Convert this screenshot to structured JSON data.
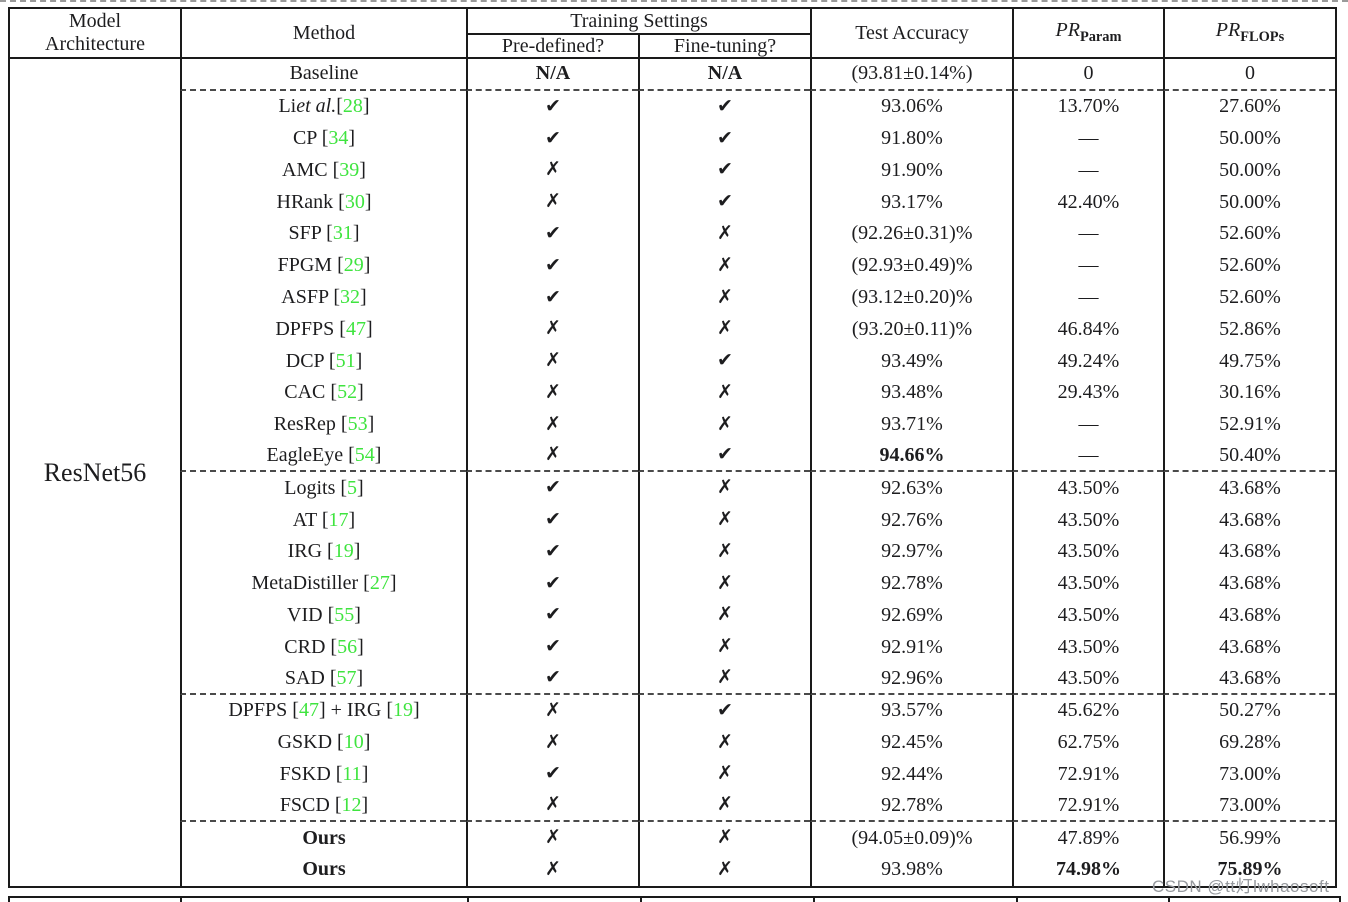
{
  "model_architecture": "ResNet56",
  "header": {
    "model_line1": "Model",
    "model_line2": "Architecture",
    "method": "Method",
    "training_settings": "Training Settings",
    "predefined": "Pre-defined?",
    "finetuning": "Fine-tuning?",
    "test_accuracy": "Test Accuracy",
    "pr_param": {
      "base": "PR",
      "sub": "Param"
    },
    "pr_flops": {
      "base": "PR",
      "sub": "FLOPs"
    }
  },
  "marks": {
    "check": "✔",
    "cross": "✗",
    "na": "N/A"
  },
  "colors": {
    "citation": "#3fe43f",
    "text": "#1d1d1f",
    "separator": "#4a4a4a",
    "watermark": "#96999e"
  },
  "watermark": "CSDN @tt灯lwhaosoft",
  "rows": [
    {
      "method": [
        {
          "t": "Baseline"
        }
      ],
      "pre": "na",
      "fine": "na",
      "acc": "(93.81±0.14%)",
      "param": "0",
      "flops": "0",
      "sep": true
    },
    {
      "method": [
        {
          "t": "Li "
        },
        {
          "t": "et al.",
          "s": "i"
        },
        {
          "t": " ["
        },
        {
          "t": "28",
          "s": "c"
        },
        {
          "t": "]"
        }
      ],
      "pre": "check",
      "fine": "check",
      "acc": "93.06%",
      "param": "13.70%",
      "flops": "27.60%"
    },
    {
      "method": [
        {
          "t": "CP ["
        },
        {
          "t": "34",
          "s": "c"
        },
        {
          "t": "]"
        }
      ],
      "pre": "check",
      "fine": "check",
      "acc": "91.80%",
      "param": "––",
      "flops": "50.00%"
    },
    {
      "method": [
        {
          "t": "AMC ["
        },
        {
          "t": "39",
          "s": "c"
        },
        {
          "t": "]"
        }
      ],
      "pre": "cross",
      "fine": "check",
      "acc": "91.90%",
      "param": "––",
      "flops": "50.00%"
    },
    {
      "method": [
        {
          "t": "HRank ["
        },
        {
          "t": "30",
          "s": "c"
        },
        {
          "t": "]"
        }
      ],
      "pre": "cross",
      "fine": "check",
      "acc": "93.17%",
      "param": "42.40%",
      "flops": "50.00%"
    },
    {
      "method": [
        {
          "t": "SFP ["
        },
        {
          "t": "31",
          "s": "c"
        },
        {
          "t": "]"
        }
      ],
      "pre": "check",
      "fine": "cross",
      "acc": "(92.26±0.31)%",
      "param": "––",
      "flops": "52.60%"
    },
    {
      "method": [
        {
          "t": "FPGM ["
        },
        {
          "t": "29",
          "s": "c"
        },
        {
          "t": "]"
        }
      ],
      "pre": "check",
      "fine": "cross",
      "acc": "(92.93±0.49)%",
      "param": "––",
      "flops": "52.60%"
    },
    {
      "method": [
        {
          "t": "ASFP ["
        },
        {
          "t": "32",
          "s": "c"
        },
        {
          "t": "]"
        }
      ],
      "pre": "check",
      "fine": "cross",
      "acc": "(93.12±0.20)%",
      "param": "––",
      "flops": "52.60%"
    },
    {
      "method": [
        {
          "t": "DPFPS ["
        },
        {
          "t": "47",
          "s": "c"
        },
        {
          "t": "]"
        }
      ],
      "pre": "cross",
      "fine": "cross",
      "acc": "(93.20±0.11)%",
      "param": "46.84%",
      "flops": "52.86%"
    },
    {
      "method": [
        {
          "t": "DCP ["
        },
        {
          "t": "51",
          "s": "c"
        },
        {
          "t": "]"
        }
      ],
      "pre": "cross",
      "fine": "check",
      "acc": "93.49%",
      "param": "49.24%",
      "flops": "49.75%"
    },
    {
      "method": [
        {
          "t": "CAC ["
        },
        {
          "t": "52",
          "s": "c"
        },
        {
          "t": "]"
        }
      ],
      "pre": "cross",
      "fine": "cross",
      "acc": "93.48%",
      "param": "29.43%",
      "flops": "30.16%"
    },
    {
      "method": [
        {
          "t": "ResRep ["
        },
        {
          "t": "53",
          "s": "c"
        },
        {
          "t": "]"
        }
      ],
      "pre": "cross",
      "fine": "cross",
      "acc": "93.71%",
      "param": "––",
      "flops": "52.91%"
    },
    {
      "method": [
        {
          "t": "EagleEye ["
        },
        {
          "t": "54",
          "s": "c"
        },
        {
          "t": "]"
        }
      ],
      "pre": "cross",
      "fine": "check",
      "acc": "94.66%",
      "acc_bold": true,
      "param": "––",
      "flops": "50.40%",
      "sep": true
    },
    {
      "method": [
        {
          "t": "Logits ["
        },
        {
          "t": "5",
          "s": "c"
        },
        {
          "t": "]"
        }
      ],
      "pre": "check",
      "fine": "cross",
      "acc": "92.63%",
      "param": "43.50%",
      "flops": "43.68%"
    },
    {
      "method": [
        {
          "t": "AT ["
        },
        {
          "t": "17",
          "s": "c"
        },
        {
          "t": "]"
        }
      ],
      "pre": "check",
      "fine": "cross",
      "acc": "92.76%",
      "param": "43.50%",
      "flops": "43.68%"
    },
    {
      "method": [
        {
          "t": "IRG ["
        },
        {
          "t": "19",
          "s": "c"
        },
        {
          "t": "]"
        }
      ],
      "pre": "check",
      "fine": "cross",
      "acc": "92.97%",
      "param": "43.50%",
      "flops": "43.68%"
    },
    {
      "method": [
        {
          "t": "MetaDistiller ["
        },
        {
          "t": "27",
          "s": "c"
        },
        {
          "t": "]"
        }
      ],
      "pre": "check",
      "fine": "cross",
      "acc": "92.78%",
      "param": "43.50%",
      "flops": "43.68%"
    },
    {
      "method": [
        {
          "t": "VID ["
        },
        {
          "t": "55",
          "s": "c"
        },
        {
          "t": "]"
        }
      ],
      "pre": "check",
      "fine": "cross",
      "acc": "92.69%",
      "param": "43.50%",
      "flops": "43.68%"
    },
    {
      "method": [
        {
          "t": "CRD ["
        },
        {
          "t": "56",
          "s": "c"
        },
        {
          "t": "]"
        }
      ],
      "pre": "check",
      "fine": "cross",
      "acc": "92.91%",
      "param": "43.50%",
      "flops": "43.68%"
    },
    {
      "method": [
        {
          "t": "SAD ["
        },
        {
          "t": "57",
          "s": "c"
        },
        {
          "t": "]"
        }
      ],
      "pre": "check",
      "fine": "cross",
      "acc": "92.96%",
      "param": "43.50%",
      "flops": "43.68%",
      "sep": true
    },
    {
      "method": [
        {
          "t": "DPFPS ["
        },
        {
          "t": "47",
          "s": "c"
        },
        {
          "t": "] + IRG ["
        },
        {
          "t": "19",
          "s": "c"
        },
        {
          "t": "]"
        }
      ],
      "pre": "cross",
      "fine": "check",
      "acc": "93.57%",
      "param": "45.62%",
      "flops": "50.27%"
    },
    {
      "method": [
        {
          "t": "GSKD ["
        },
        {
          "t": "10",
          "s": "c"
        },
        {
          "t": "]"
        }
      ],
      "pre": "cross",
      "fine": "cross",
      "acc": "92.45%",
      "param": "62.75%",
      "flops": "69.28%"
    },
    {
      "method": [
        {
          "t": "FSKD ["
        },
        {
          "t": "11",
          "s": "c"
        },
        {
          "t": "]"
        }
      ],
      "pre": "check",
      "fine": "cross",
      "acc": "92.44%",
      "param": "72.91%",
      "flops": "73.00%"
    },
    {
      "method": [
        {
          "t": "FSCD ["
        },
        {
          "t": "12",
          "s": "c"
        },
        {
          "t": "]"
        }
      ],
      "pre": "cross",
      "fine": "cross",
      "acc": "92.78%",
      "param": "72.91%",
      "flops": "73.00%",
      "sep": true
    },
    {
      "method": [
        {
          "t": "Ours",
          "s": "b"
        }
      ],
      "pre": "cross",
      "fine": "cross",
      "acc": "(94.05±0.09)%",
      "param": "47.89%",
      "flops": "56.99%"
    },
    {
      "method": [
        {
          "t": "Ours",
          "s": "b"
        }
      ],
      "pre": "cross",
      "fine": "cross",
      "acc": "93.98%",
      "param": "74.98%",
      "param_bold": true,
      "flops": "75.89%",
      "flops_bold": true
    }
  ]
}
